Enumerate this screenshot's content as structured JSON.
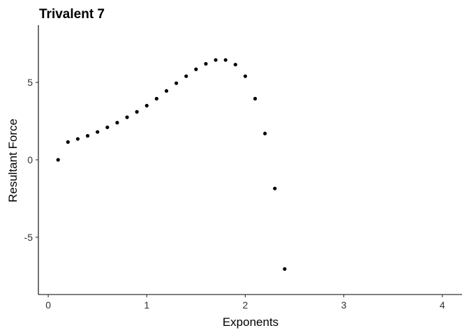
{
  "chart_data": {
    "type": "scatter",
    "title": "Trivalent 7",
    "xlabel": "Exponents",
    "ylabel": "Resultant Force",
    "xlim": [
      -0.1,
      4.2
    ],
    "ylim": [
      -8.7,
      8.7
    ],
    "xticks": [
      0,
      1,
      2,
      3,
      4
    ],
    "yticks": [
      -5,
      0,
      5
    ],
    "grid": false,
    "legend": "none",
    "point_color": "#000000",
    "series": [
      {
        "x": [
          0.1,
          0.2,
          0.3,
          0.4,
          0.5,
          0.6,
          0.7,
          0.8,
          0.9,
          1.0,
          1.1,
          1.2,
          1.3,
          1.4,
          1.5,
          1.6,
          1.7,
          1.8,
          1.9,
          2.0,
          2.1,
          2.2,
          2.3,
          2.4
        ],
        "y": [
          0.0,
          1.15,
          1.35,
          1.55,
          1.8,
          2.1,
          2.4,
          2.75,
          3.1,
          3.5,
          3.95,
          4.45,
          4.95,
          5.4,
          5.85,
          6.2,
          6.45,
          6.45,
          6.15,
          5.4,
          3.95,
          1.7,
          -1.85,
          -7.05
        ]
      }
    ]
  }
}
